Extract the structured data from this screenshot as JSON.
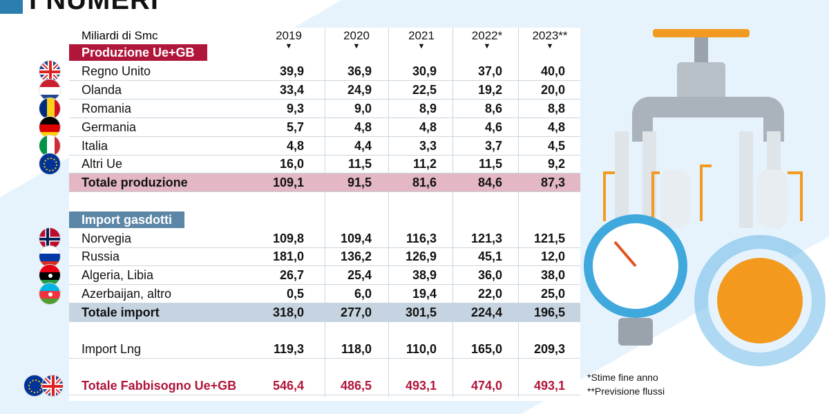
{
  "title": "I NUMERI",
  "unit": "Miliardi di Smc",
  "years": [
    "2019",
    "2020",
    "2021",
    "2022*",
    "2023**"
  ],
  "sections": {
    "production": "Produzione Ue+GB",
    "pipeline": "Import gasdotti"
  },
  "chart_data": {
    "type": "table",
    "columns": [
      "2019",
      "2020",
      "2021",
      "2022*",
      "2023**"
    ],
    "rows": [
      {
        "label": "Regno Unito",
        "flag": "uk-flag",
        "values": [
          "39,9",
          "36,9",
          "30,9",
          "37,0",
          "40,0"
        ]
      },
      {
        "label": "Olanda",
        "flag": "netherlands-flag",
        "values": [
          "33,4",
          "24,9",
          "22,5",
          "19,2",
          "20,0"
        ]
      },
      {
        "label": "Romania",
        "flag": "romania-flag",
        "values": [
          "9,3",
          "9,0",
          "8,9",
          "8,6",
          "8,8"
        ]
      },
      {
        "label": "Germania",
        "flag": "germany-flag",
        "values": [
          "5,7",
          "4,8",
          "4,8",
          "4,6",
          "4,8"
        ]
      },
      {
        "label": "Italia",
        "flag": "italy-flag",
        "values": [
          "4,8",
          "4,4",
          "3,3",
          "3,7",
          "4,5"
        ]
      },
      {
        "label": "Altri Ue",
        "flag": "eu-flag",
        "values": [
          "16,0",
          "11,5",
          "11,2",
          "11,5",
          "9,2"
        ]
      },
      {
        "label": "Totale produzione",
        "values": [
          "109,1",
          "91,5",
          "81,6",
          "84,6",
          "87,3"
        ]
      },
      {
        "label": "Norvegia",
        "flag": "norway-flag",
        "values": [
          "109,8",
          "109,4",
          "116,3",
          "121,3",
          "121,5"
        ]
      },
      {
        "label": "Russia",
        "flag": "russia-flag",
        "values": [
          "181,0",
          "136,2",
          "126,9",
          "45,1",
          "12,0"
        ]
      },
      {
        "label": "Algeria, Libia",
        "flag": "algeria-libya-flag",
        "values": [
          "26,7",
          "25,4",
          "38,9",
          "36,0",
          "38,0"
        ]
      },
      {
        "label": "Azerbaijan, altro",
        "flag": "azerbaijan-flag",
        "values": [
          "0,5",
          "6,0",
          "19,4",
          "22,0",
          "25,0"
        ]
      },
      {
        "label": "Totale import",
        "values": [
          "318,0",
          "277,0",
          "301,5",
          "224,4",
          "196,5"
        ]
      },
      {
        "label": "Import Lng",
        "values": [
          "119,3",
          "118,0",
          "110,0",
          "165,0",
          "209,3"
        ]
      },
      {
        "label": "Totale Fabbisogno Ue+GB",
        "flag": "eu-uk-flag",
        "values": [
          "546,4",
          "486,5",
          "493,1",
          "474,0",
          "493,1"
        ]
      }
    ]
  },
  "notes": [
    "*Stime fine anno",
    "**Previsione flussi"
  ],
  "colors": {
    "production": "#b0153a",
    "pipeline": "#5b86a6",
    "total_production": "#e3b7c3",
    "total_import": "#c6d4e1"
  }
}
